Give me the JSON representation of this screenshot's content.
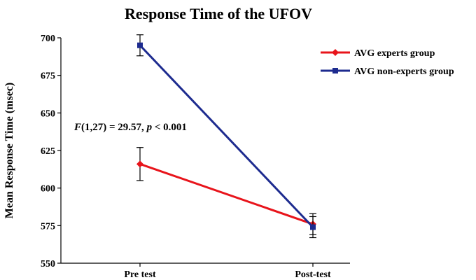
{
  "chart_data": {
    "type": "line",
    "title": "Response Time of  the UFOV",
    "xlabel": "",
    "ylabel": "Mean Response Time (msec)",
    "categories": [
      "Pre test",
      "Post-test"
    ],
    "ylim": [
      550,
      700
    ],
    "yticks": [
      550,
      575,
      600,
      625,
      650,
      675,
      700
    ],
    "grid": false,
    "legend_position": "top-right",
    "series": [
      {
        "name": "AVG experts group",
        "color": "#e8141b",
        "marker": "diamond",
        "values": [
          616,
          576
        ],
        "errors": [
          11,
          7
        ]
      },
      {
        "name": "AVG non-experts group",
        "color": "#1d2b8f",
        "marker": "square",
        "values": [
          695,
          574
        ],
        "errors": [
          7,
          7
        ]
      }
    ],
    "annotation": {
      "f_letter": "F",
      "df": "(1,27) = 29.57, ",
      "p_letter": "p",
      "p_rest": " < 0.001"
    }
  }
}
